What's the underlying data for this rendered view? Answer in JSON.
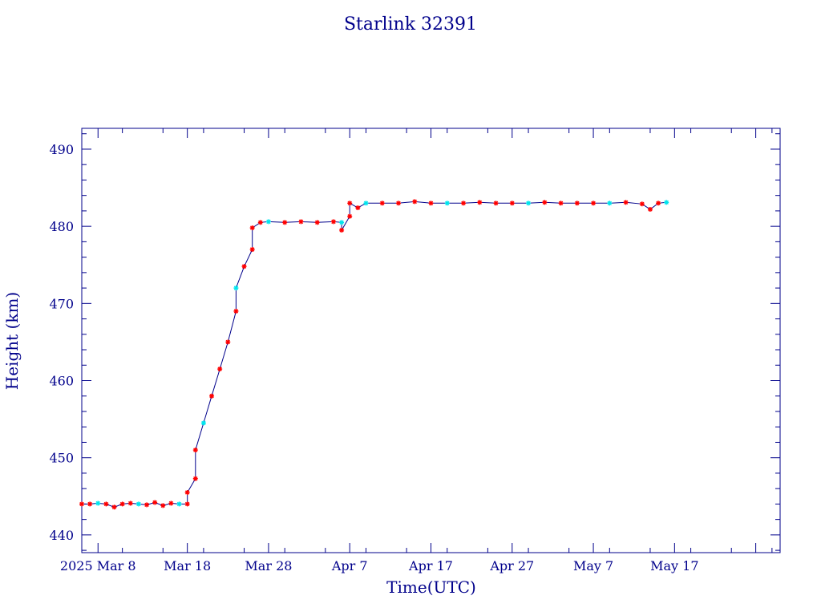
{
  "chart_data": {
    "type": "scatter",
    "title": "Starlink 32391",
    "xlabel": "Time(UTC)",
    "ylabel": "Height (km)",
    "x_range": [
      "2025-02-23",
      "2025-05-20"
    ],
    "ylim": [
      437.7,
      492.7
    ],
    "x_ticks": [
      {
        "date": "2025-02-25",
        "label": "2025 Mar  8"
      },
      {
        "date": "2025-03-08",
        "label": "Mar 18"
      },
      {
        "date": "2025-03-18",
        "label": "Mar 28"
      },
      {
        "date": "2025-03-28",
        "label": "Apr  7"
      },
      {
        "date": "2025-04-07",
        "label": "Apr 17"
      },
      {
        "date": "2025-04-17",
        "label": "Apr 27"
      },
      {
        "date": "2025-04-27",
        "label": "May  7"
      },
      {
        "date": "2025-05-07",
        "label": "May 17"
      },
      {
        "date": "2025-05-17",
        "label": ""
      }
    ],
    "y_ticks": [
      440,
      450,
      460,
      470,
      480,
      490
    ],
    "grid": false,
    "line_color": "#00008b",
    "marker_colors": {
      "primary": "#ff0000",
      "secondary": "#00e5ee"
    },
    "series": [
      {
        "points": [
          [
            "2025-02-23",
            444.0
          ],
          [
            "2025-02-24",
            444.0
          ],
          [
            "2025-02-25",
            444.1
          ],
          [
            "2025-02-26",
            444.0
          ],
          [
            "2025-02-27",
            443.6
          ],
          [
            "2025-02-28",
            444.0
          ],
          [
            "2025-03-01",
            444.1
          ],
          [
            "2025-03-02",
            444.0
          ],
          [
            "2025-03-03",
            443.9
          ],
          [
            "2025-03-04",
            444.2
          ],
          [
            "2025-03-05",
            443.8
          ],
          [
            "2025-03-06",
            444.1
          ],
          [
            "2025-03-07",
            444.0
          ],
          [
            "2025-03-08",
            444.0
          ],
          [
            "2025-03-08",
            445.5
          ],
          [
            "2025-03-09",
            447.3
          ],
          [
            "2025-03-09",
            451.0
          ],
          [
            "2025-03-10",
            454.5
          ],
          [
            "2025-03-11",
            458.0
          ],
          [
            "2025-03-12",
            461.5
          ],
          [
            "2025-03-13",
            465.0
          ],
          [
            "2025-03-14",
            469.0
          ],
          [
            "2025-03-14",
            472.0
          ],
          [
            "2025-03-15",
            474.8
          ],
          [
            "2025-03-16",
            477.0
          ],
          [
            "2025-03-16",
            479.8
          ],
          [
            "2025-03-17",
            480.5
          ],
          [
            "2025-03-18",
            480.6
          ],
          [
            "2025-03-20",
            480.5
          ],
          [
            "2025-03-22",
            480.6
          ],
          [
            "2025-03-24",
            480.5
          ],
          [
            "2025-03-26",
            480.6
          ],
          [
            "2025-03-27",
            480.5
          ],
          [
            "2025-03-27",
            479.5
          ],
          [
            "2025-03-28",
            481.3
          ],
          [
            "2025-03-28",
            483.0
          ],
          [
            "2025-03-29",
            482.4
          ],
          [
            "2025-03-30",
            483.0
          ],
          [
            "2025-04-01",
            483.0
          ],
          [
            "2025-04-03",
            483.0
          ],
          [
            "2025-04-05",
            483.2
          ],
          [
            "2025-04-07",
            483.0
          ],
          [
            "2025-04-09",
            483.0
          ],
          [
            "2025-04-11",
            483.0
          ],
          [
            "2025-04-13",
            483.1
          ],
          [
            "2025-04-15",
            483.0
          ],
          [
            "2025-04-17",
            483.0
          ],
          [
            "2025-04-19",
            483.0
          ],
          [
            "2025-04-21",
            483.1
          ],
          [
            "2025-04-23",
            483.0
          ],
          [
            "2025-04-25",
            483.0
          ],
          [
            "2025-04-27",
            483.0
          ],
          [
            "2025-04-29",
            483.0
          ],
          [
            "2025-05-01",
            483.1
          ],
          [
            "2025-05-03",
            482.9
          ],
          [
            "2025-05-04",
            482.2
          ],
          [
            "2025-05-05",
            483.0
          ],
          [
            "2025-05-06",
            483.1
          ]
        ]
      }
    ]
  }
}
